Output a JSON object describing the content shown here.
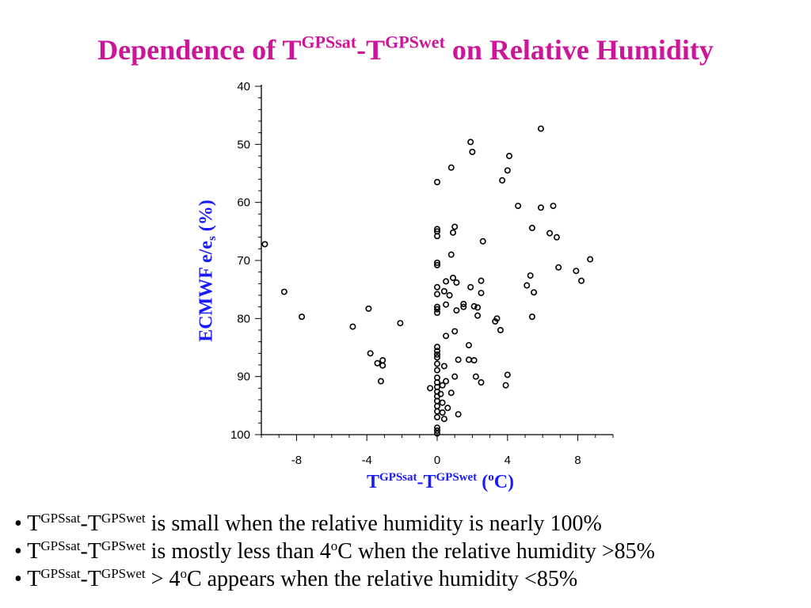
{
  "title": {
    "pre": "Dependence of ",
    "t1": "T",
    "sup1": "GPSsat",
    "mid": "-T",
    "sup2": "GPSwet",
    "post": " on Relative Humidity"
  },
  "axis_labels": {
    "y_main": "ECMWF e/e",
    "y_sub": "s",
    "y_unit": " (%)",
    "x_t1": "T",
    "x_sup1": "GPSsat",
    "x_mid": "-T",
    "x_sup2": "GPSwet",
    "x_pre_unit": " (",
    "x_unit_sup": "o",
    "x_unit_post": "C)"
  },
  "bullets": [
    {
      "mark": "• ",
      "t1": "T",
      "s1": "GPSsat",
      "t2": "-T",
      "s2": "GPSwet",
      "text_a": " is small when the relative humidity is nearly 100%",
      "deg": "",
      "text_b": ""
    },
    {
      "mark": "• ",
      "t1": "T",
      "s1": "GPSsat",
      "t2": "-T",
      "s2": "GPSwet",
      "text_a": " is mostly less than 4",
      "deg": "o",
      "text_b": "C when the relative humidity >85%"
    },
    {
      "mark": "• ",
      "t1": "T",
      "s1": "GPSsat",
      "t2": "-T",
      "s2": "GPSwet",
      "text_a": " > 4",
      "deg": "o",
      "text_b": "C appears when the relative humidity <85%"
    }
  ],
  "colors": {
    "title": "#cc1599",
    "axis_label": "#1a1aff",
    "marker": "#000000"
  },
  "chart_data": {
    "type": "scatter",
    "xlabel": "TGPSsat-TGPSwet (oC)",
    "ylabel": "ECMWF e/es (%)",
    "xlim": [
      -10,
      10
    ],
    "ylim": [
      40,
      100
    ],
    "y_inverted": true,
    "x_ticks": [
      -8,
      -4,
      0,
      4,
      8
    ],
    "y_ticks": [
      40,
      50,
      60,
      70,
      80,
      90,
      100
    ],
    "grid": false,
    "marker": "open-circle",
    "points": [
      [
        -9.8,
        67.2
      ],
      [
        -8.7,
        75.4
      ],
      [
        -7.7,
        79.7
      ],
      [
        -4.8,
        81.4
      ],
      [
        -3.9,
        78.3
      ],
      [
        -3.8,
        86.0
      ],
      [
        -3.4,
        87.7
      ],
      [
        -3.1,
        87.2
      ],
      [
        -3.1,
        88.1
      ],
      [
        -3.2,
        90.8
      ],
      [
        -2.1,
        80.8
      ],
      [
        0.0,
        56.5
      ],
      [
        0.0,
        64.6
      ],
      [
        0.0,
        65.0
      ],
      [
        0.0,
        65.8
      ],
      [
        0.0,
        70.4
      ],
      [
        0.0,
        70.8
      ],
      [
        0.0,
        74.6
      ],
      [
        0.0,
        75.8
      ],
      [
        0.0,
        78.0
      ],
      [
        0.0,
        78.4
      ],
      [
        0.0,
        79.0
      ],
      [
        0.0,
        84.9
      ],
      [
        0.0,
        85.6
      ],
      [
        0.0,
        86.2
      ],
      [
        0.0,
        86.7
      ],
      [
        0.0,
        87.8
      ],
      [
        0.0,
        88.9
      ],
      [
        0.0,
        90.2
      ],
      [
        0.0,
        91.0
      ],
      [
        0.0,
        91.8
      ],
      [
        0.0,
        92.6
      ],
      [
        0.0,
        93.4
      ],
      [
        0.0,
        94.2
      ],
      [
        0.0,
        95.1
      ],
      [
        0.0,
        96.0
      ],
      [
        0.0,
        97.0
      ],
      [
        0.0,
        98.8
      ],
      [
        0.0,
        99.3
      ],
      [
        0.0,
        99.8
      ],
      [
        -0.4,
        92.0
      ],
      [
        0.2,
        93.0
      ],
      [
        0.3,
        91.5
      ],
      [
        0.3,
        94.5
      ],
      [
        0.3,
        96.2
      ],
      [
        0.4,
        75.3
      ],
      [
        0.4,
        88.2
      ],
      [
        0.4,
        97.3
      ],
      [
        0.5,
        73.6
      ],
      [
        0.5,
        77.6
      ],
      [
        0.5,
        83.0
      ],
      [
        0.5,
        90.8
      ],
      [
        0.6,
        95.4
      ],
      [
        0.7,
        76.0
      ],
      [
        0.8,
        69.0
      ],
      [
        0.8,
        92.8
      ],
      [
        0.8,
        54.0
      ],
      [
        0.9,
        65.2
      ],
      [
        0.9,
        73.0
      ],
      [
        1.0,
        64.2
      ],
      [
        1.0,
        82.2
      ],
      [
        1.0,
        90.0
      ],
      [
        1.1,
        73.8
      ],
      [
        1.1,
        78.6
      ],
      [
        1.2,
        87.1
      ],
      [
        1.2,
        96.5
      ],
      [
        1.5,
        77.5
      ],
      [
        1.5,
        78.0
      ],
      [
        1.8,
        84.6
      ],
      [
        1.8,
        87.1
      ],
      [
        1.9,
        49.6
      ],
      [
        1.9,
        74.6
      ],
      [
        2.0,
        51.3
      ],
      [
        2.1,
        77.9
      ],
      [
        2.1,
        87.2
      ],
      [
        2.2,
        90.0
      ],
      [
        2.3,
        79.5
      ],
      [
        2.3,
        78.1
      ],
      [
        2.5,
        73.5
      ],
      [
        2.5,
        75.6
      ],
      [
        2.5,
        91.0
      ],
      [
        2.6,
        66.7
      ],
      [
        3.3,
        80.5
      ],
      [
        3.4,
        80.0
      ],
      [
        3.6,
        82.0
      ],
      [
        3.7,
        56.2
      ],
      [
        3.9,
        91.5
      ],
      [
        4.0,
        54.5
      ],
      [
        4.0,
        89.7
      ],
      [
        4.1,
        52.0
      ],
      [
        4.6,
        60.6
      ],
      [
        5.1,
        74.3
      ],
      [
        5.3,
        72.6
      ],
      [
        5.4,
        64.4
      ],
      [
        5.4,
        79.7
      ],
      [
        5.5,
        75.5
      ],
      [
        5.9,
        47.3
      ],
      [
        5.9,
        60.9
      ],
      [
        6.4,
        65.3
      ],
      [
        6.6,
        60.6
      ],
      [
        6.8,
        66.0
      ],
      [
        6.9,
        71.2
      ],
      [
        7.9,
        71.8
      ],
      [
        8.2,
        73.5
      ],
      [
        8.7,
        69.8
      ]
    ]
  }
}
